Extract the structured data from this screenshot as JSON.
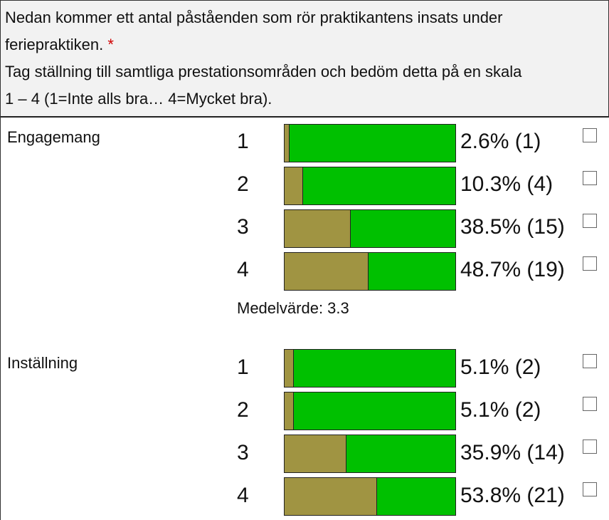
{
  "question": {
    "line1": "Nedan kommer ett antal påståenden som rör praktikantens insats under",
    "line2": "feriepraktiken.",
    "required_marker": "*",
    "line3": "Tag ställning till samtliga prestationsområden och bedöm detta på en skala",
    "line4": "1 – 4 (1=Inte alls bra… 4=Mycket bra)."
  },
  "categories": [
    {
      "label": "Engagemang",
      "rows": [
        {
          "value": "1",
          "pct_text": "2.6% (1)",
          "fraction": 0.026
        },
        {
          "value": "2",
          "pct_text": "10.3% (4)",
          "fraction": 0.103
        },
        {
          "value": "3",
          "pct_text": "38.5% (15)",
          "fraction": 0.385
        },
        {
          "value": "4",
          "pct_text": "48.7% (19)",
          "fraction": 0.487
        }
      ],
      "mean_text": "Medelvärde: 3.3"
    },
    {
      "label": "Inställning",
      "rows": [
        {
          "value": "1",
          "pct_text": "5.1% (2)",
          "fraction": 0.051
        },
        {
          "value": "2",
          "pct_text": "5.1% (2)",
          "fraction": 0.051
        },
        {
          "value": "3",
          "pct_text": "35.9% (14)",
          "fraction": 0.359
        },
        {
          "value": "4",
          "pct_text": "53.8% (21)",
          "fraction": 0.538
        }
      ]
    }
  ],
  "colors": {
    "filled": "#a09442",
    "remainder": "#00c000",
    "required": "#d00000"
  }
}
